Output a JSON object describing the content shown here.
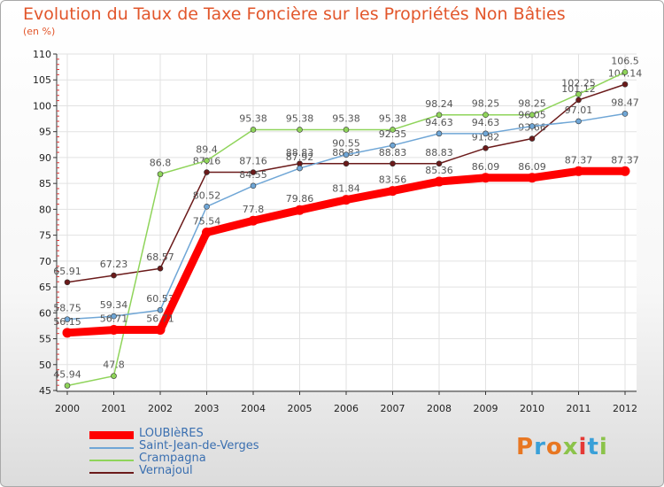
{
  "title": "Evolution du Taux de Taxe Foncière sur les Propriétés Non Bâties",
  "unit_label": "(en %)",
  "logo_text": "Proxiti",
  "logo_colors": [
    "#e87722",
    "#3aa0d8",
    "#e87722",
    "#8bc34a",
    "#e53935",
    "#3aa0d8",
    "#8bc34a"
  ],
  "chart_data": {
    "type": "line",
    "title": "Evolution du Taux de Taxe Foncière sur les Propriétés Non Bâties",
    "ylabel": "(en %)",
    "xlabel": "",
    "x": [
      "2000",
      "2001",
      "2002",
      "2003",
      "2004",
      "2005",
      "2006",
      "2007",
      "2008",
      "2009",
      "2010",
      "2011",
      "2012"
    ],
    "ylim": [
      45,
      110
    ],
    "yticks": [
      45,
      50,
      55,
      60,
      65,
      70,
      75,
      80,
      85,
      90,
      95,
      100,
      105,
      110
    ],
    "grid": true,
    "legend_position": "bottom-left",
    "series": [
      {
        "name": "Vernajoul",
        "color": "#6b1a1a",
        "values": [
          65.91,
          67.23,
          68.57,
          87.16,
          87.16,
          88.83,
          88.83,
          88.83,
          88.83,
          91.82,
          93.66,
          101.12,
          104.14
        ],
        "labels": [
          "65.91",
          "67.23",
          "68.57",
          "87.16",
          "87.16",
          "88.83",
          "88.83",
          "88.83",
          "88.83",
          "91.82",
          "93.66",
          "101.12",
          "104.14"
        ]
      },
      {
        "name": "Crampagna",
        "color": "#8fd45a",
        "values": [
          45.94,
          47.8,
          86.8,
          89.4,
          95.38,
          95.38,
          95.38,
          95.38,
          98.24,
          98.25,
          98.25,
          102.25,
          106.5
        ],
        "labels": [
          "45.94",
          "47.8",
          "86.8",
          "89.4",
          "95.38",
          "95.38",
          "95.38",
          "95.38",
          "98.24",
          "98.25",
          "98.25",
          "102.25",
          "106.5"
        ]
      },
      {
        "name": "Saint-Jean-de-Verges",
        "color": "#6fa6d6",
        "values": [
          58.75,
          59.34,
          60.53,
          80.52,
          84.55,
          87.92,
          90.55,
          92.35,
          94.63,
          94.63,
          96.05,
          97.01,
          98.47
        ],
        "labels": [
          "58.75",
          "59.34",
          "60.53",
          "80.52",
          "84.55",
          "87.92",
          "90.55",
          "92.35",
          "94.63",
          "94.63",
          "96.05",
          "97.01",
          "98.47"
        ]
      },
      {
        "name": "LOUBIèRES",
        "color": "#ff0000",
        "values": [
          56.15,
          56.71,
          56.71,
          75.54,
          77.8,
          79.86,
          81.84,
          83.56,
          85.36,
          86.09,
          86.09,
          87.37,
          87.37
        ],
        "labels": [
          "56.15",
          "56.71",
          "56.71",
          "75.54",
          "77.8",
          "79.86",
          "81.84",
          "83.56",
          "85.36",
          "86.09",
          "86.09",
          "87.37",
          "87.37"
        ]
      }
    ],
    "legend": [
      "LOUBIèRES",
      "Saint-Jean-de-Verges",
      "Crampagna",
      "Vernajoul"
    ]
  }
}
